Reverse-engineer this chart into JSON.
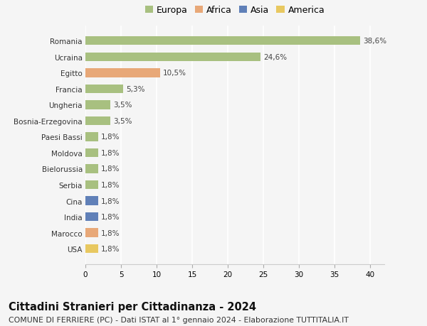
{
  "categories": [
    "Romania",
    "Ucraina",
    "Egitto",
    "Francia",
    "Ungheria",
    "Bosnia-Erzegovina",
    "Paesi Bassi",
    "Moldova",
    "Bielorussia",
    "Serbia",
    "Cina",
    "India",
    "Marocco",
    "USA"
  ],
  "values": [
    38.6,
    24.6,
    10.5,
    5.3,
    3.5,
    3.5,
    1.8,
    1.8,
    1.8,
    1.8,
    1.8,
    1.8,
    1.8,
    1.8
  ],
  "labels": [
    "38,6%",
    "24,6%",
    "10,5%",
    "5,3%",
    "3,5%",
    "3,5%",
    "1,8%",
    "1,8%",
    "1,8%",
    "1,8%",
    "1,8%",
    "1,8%",
    "1,8%",
    "1,8%"
  ],
  "colors": [
    "#a8c080",
    "#a8c080",
    "#e8a878",
    "#a8c080",
    "#a8c080",
    "#a8c080",
    "#a8c080",
    "#a8c080",
    "#a8c080",
    "#a8c080",
    "#6080b8",
    "#6080b8",
    "#e8a878",
    "#e8c860"
  ],
  "legend": [
    {
      "label": "Europa",
      "color": "#a8c080"
    },
    {
      "label": "Africa",
      "color": "#e8a878"
    },
    {
      "label": "Asia",
      "color": "#6080b8"
    },
    {
      "label": "America",
      "color": "#e8c860"
    }
  ],
  "xlim": [
    0,
    42
  ],
  "xticks": [
    0,
    5,
    10,
    15,
    20,
    25,
    30,
    35,
    40
  ],
  "title": "Cittadini Stranieri per Cittadinanza - 2024",
  "subtitle": "COMUNE DI FERRIERE (PC) - Dati ISTAT al 1° gennaio 2024 - Elaborazione TUTTITALIA.IT",
  "background_color": "#f5f5f5",
  "grid_color": "#ffffff",
  "bar_height": 0.55,
  "label_fontsize": 7.5,
  "title_fontsize": 10.5,
  "subtitle_fontsize": 7.8,
  "legend_fontsize": 9
}
